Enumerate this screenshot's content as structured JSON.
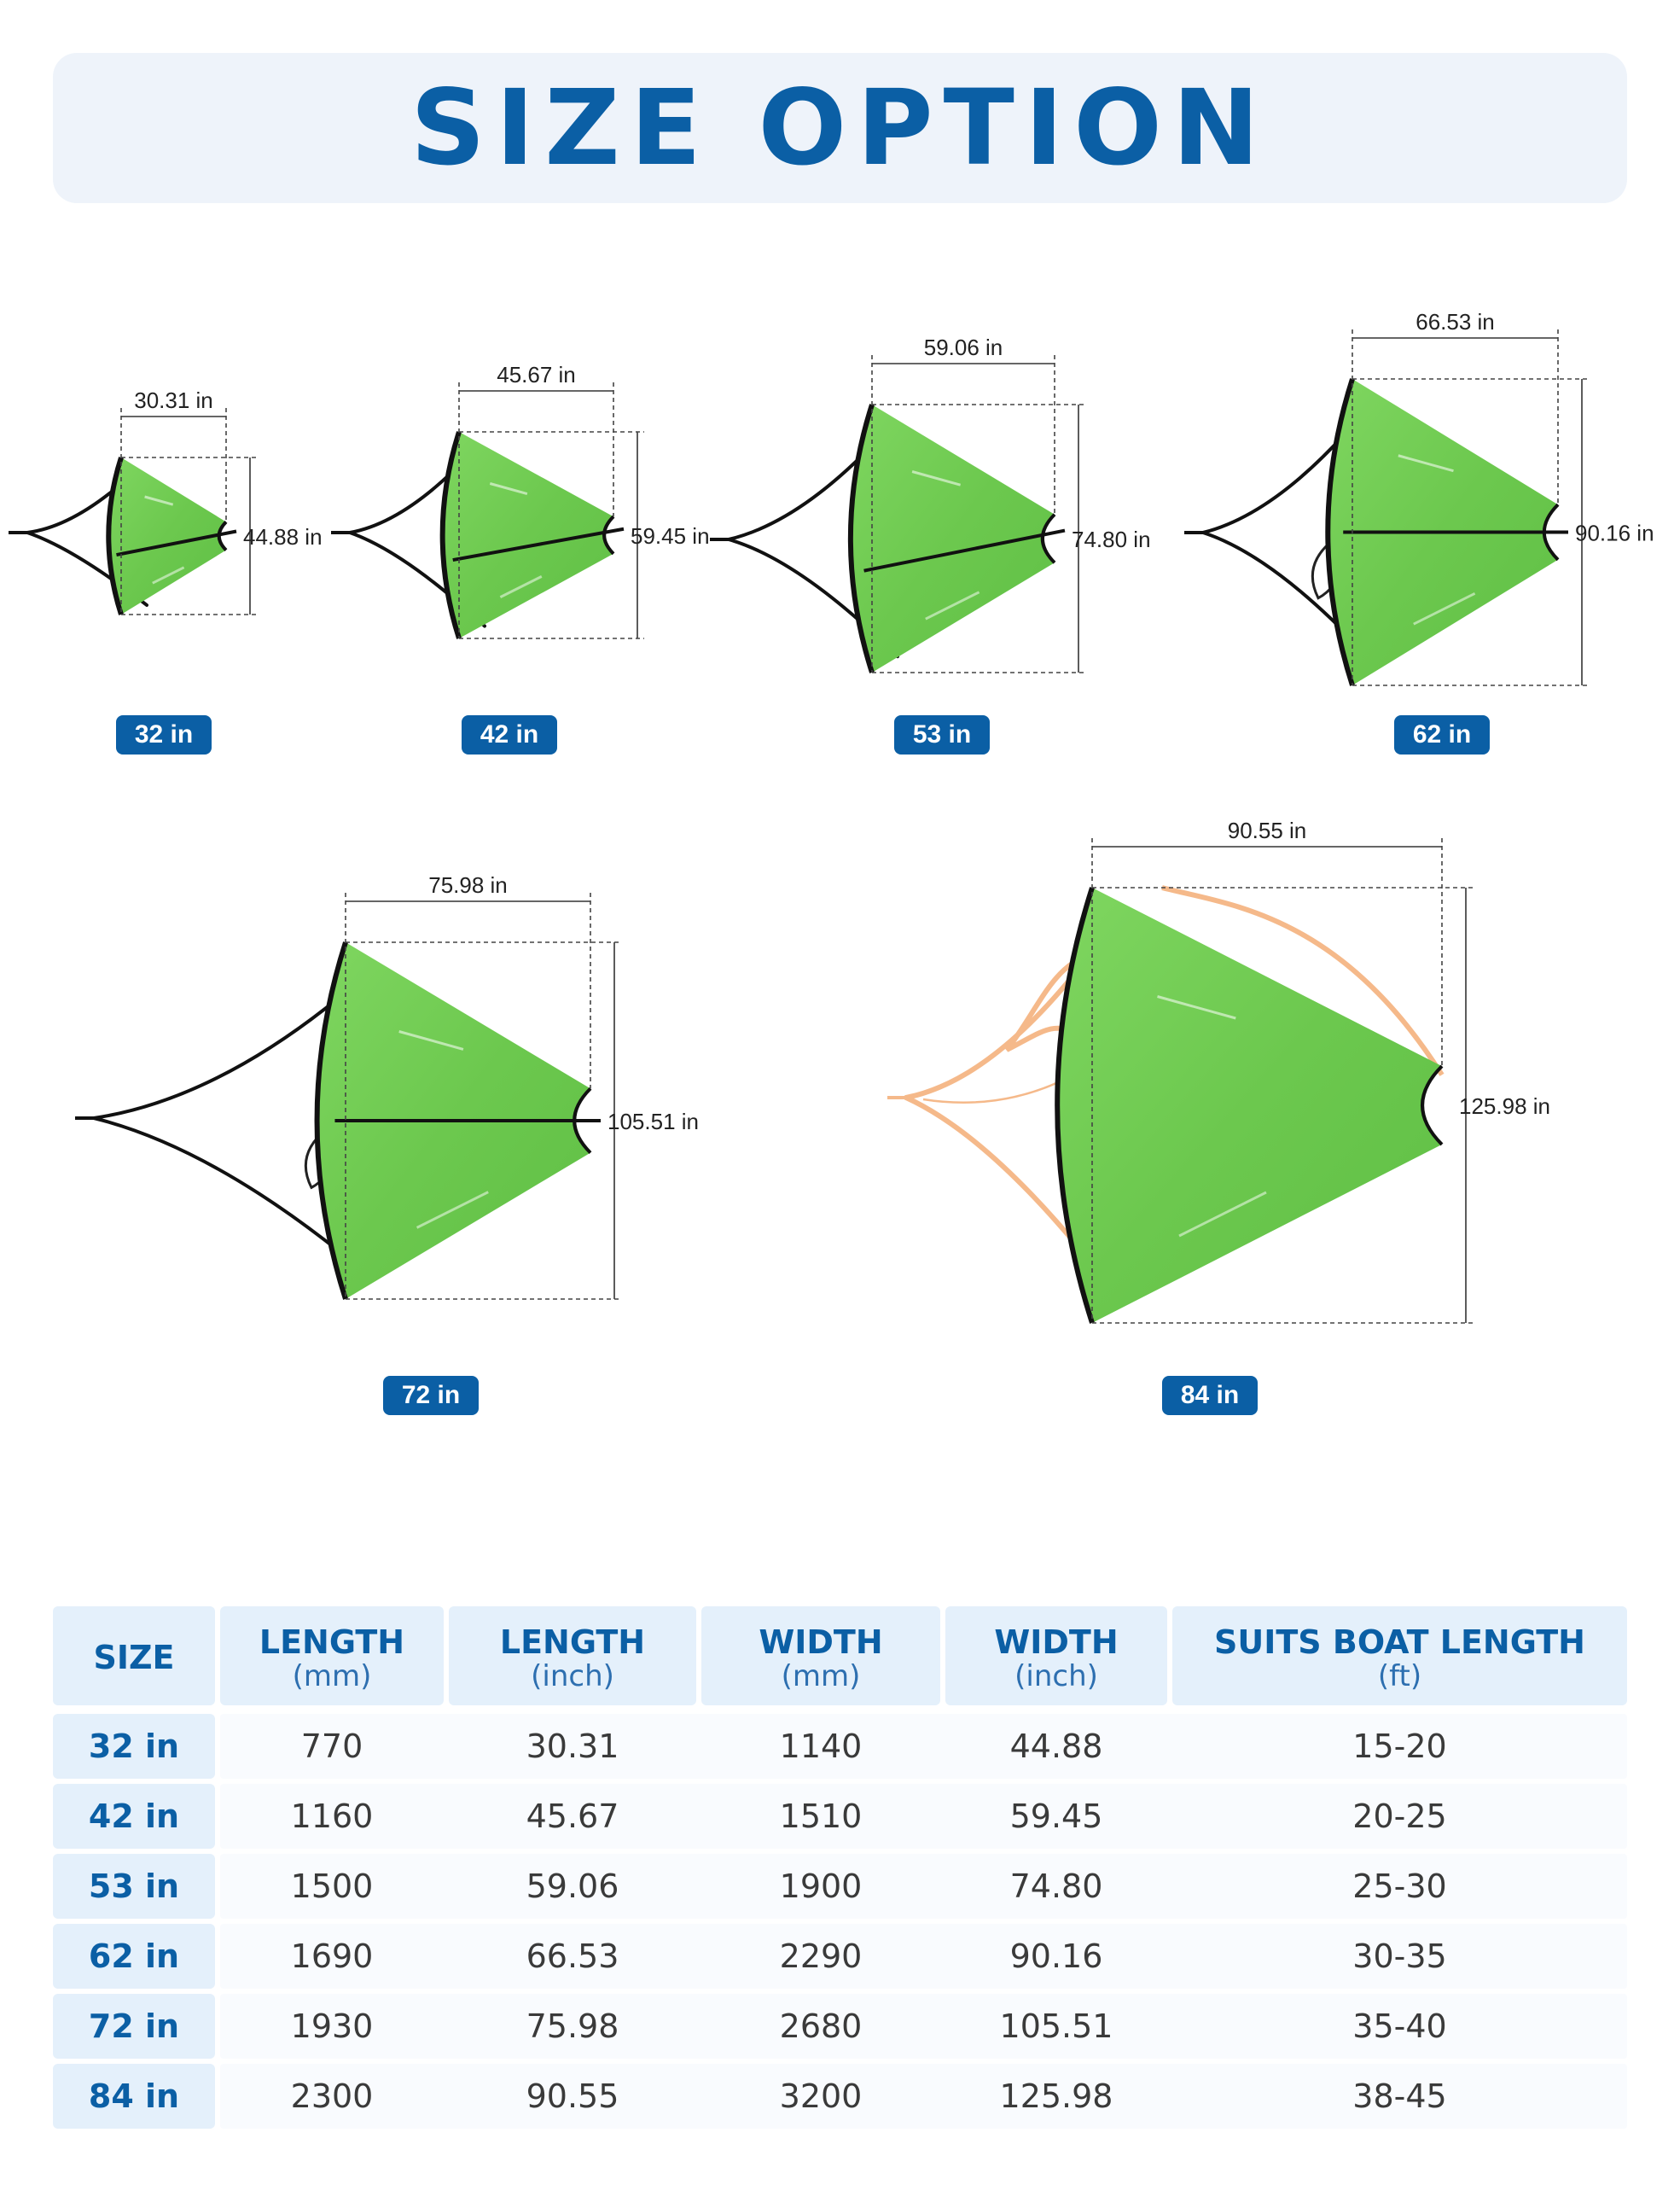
{
  "title": "SIZE OPTION",
  "anchors": [
    {
      "size": "32 in",
      "length_label": "30.31 in",
      "width_label": "44.88 in"
    },
    {
      "size": "42 in",
      "length_label": "45.67 in",
      "width_label": "59.45 in"
    },
    {
      "size": "53 in",
      "length_label": "59.06 in",
      "width_label": "74.80 in"
    },
    {
      "size": "62 in",
      "length_label": "66.53 in",
      "width_label": "90.16 in"
    },
    {
      "size": "72 in",
      "length_label": "75.98 in",
      "width_label": "105.51 in"
    },
    {
      "size": "84 in",
      "length_label": "90.55 in",
      "width_label": "125.98 in"
    }
  ],
  "colors": {
    "accent": "#0b5fa5",
    "header_bg": "#eef3fa",
    "cell_bg": "#e4f0fb",
    "sail_green": "#6fcb52",
    "rope_orange": "#f5b98a"
  },
  "table": {
    "headers": [
      {
        "main": "SIZE",
        "sub": ""
      },
      {
        "main": "LENGTH",
        "sub": "(mm)"
      },
      {
        "main": "LENGTH",
        "sub": "(inch)"
      },
      {
        "main": "WIDTH",
        "sub": "(mm)"
      },
      {
        "main": "WIDTH",
        "sub": "(inch)"
      },
      {
        "main": "SUITS BOAT LENGTH",
        "sub": "(ft)"
      }
    ],
    "rows": [
      {
        "size": "32 in",
        "length_mm": "770",
        "length_inch": "30.31",
        "width_mm": "1140",
        "width_inch": "44.88",
        "boat_ft": "15-20"
      },
      {
        "size": "42 in",
        "length_mm": "1160",
        "length_inch": "45.67",
        "width_mm": "1510",
        "width_inch": "59.45",
        "boat_ft": "20-25"
      },
      {
        "size": "53 in",
        "length_mm": "1500",
        "length_inch": "59.06",
        "width_mm": "1900",
        "width_inch": "74.80",
        "boat_ft": "25-30"
      },
      {
        "size": "62 in",
        "length_mm": "1690",
        "length_inch": "66.53",
        "width_mm": "2290",
        "width_inch": "90.16",
        "boat_ft": "30-35"
      },
      {
        "size": "72 in",
        "length_mm": "1930",
        "length_inch": "75.98",
        "width_mm": "2680",
        "width_inch": "105.51",
        "boat_ft": "35-40"
      },
      {
        "size": "84 in",
        "length_mm": "2300",
        "length_inch": "90.55",
        "width_mm": "3200",
        "width_inch": "125.98",
        "boat_ft": "38-45"
      }
    ]
  }
}
